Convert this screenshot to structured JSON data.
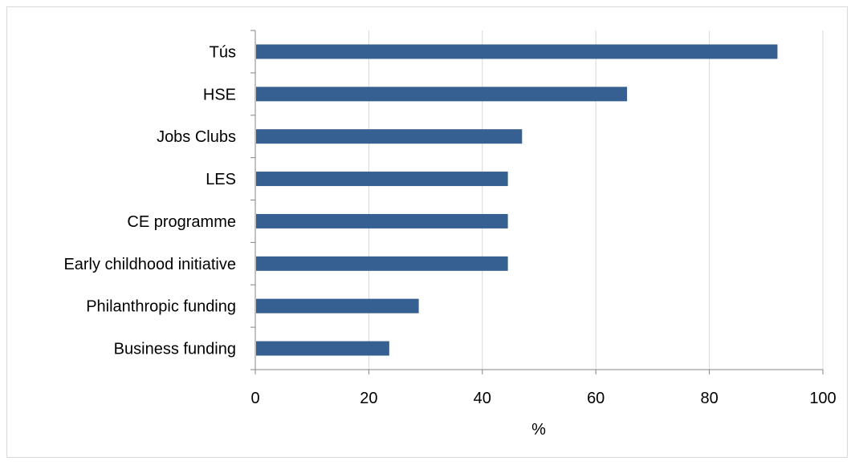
{
  "chart_data": {
    "type": "bar",
    "orientation": "horizontal",
    "categories": [
      "Tús",
      "HSE",
      "Jobs Clubs",
      "LES",
      "CE programme",
      "Early childhood initiative",
      "Philanthropic funding",
      "Business funding"
    ],
    "values": [
      92,
      65.5,
      47,
      44.5,
      44.5,
      44.5,
      28.8,
      23.6
    ],
    "title": "",
    "xlabel": "%",
    "ylabel": "",
    "xlim": [
      0,
      100
    ],
    "xticks": [
      0,
      20,
      40,
      60,
      80,
      100
    ],
    "grid": "vertical",
    "legend": "none",
    "colors": {
      "bar": "#376092",
      "grid": "#d9d9d9",
      "axis": "#868686"
    }
  }
}
